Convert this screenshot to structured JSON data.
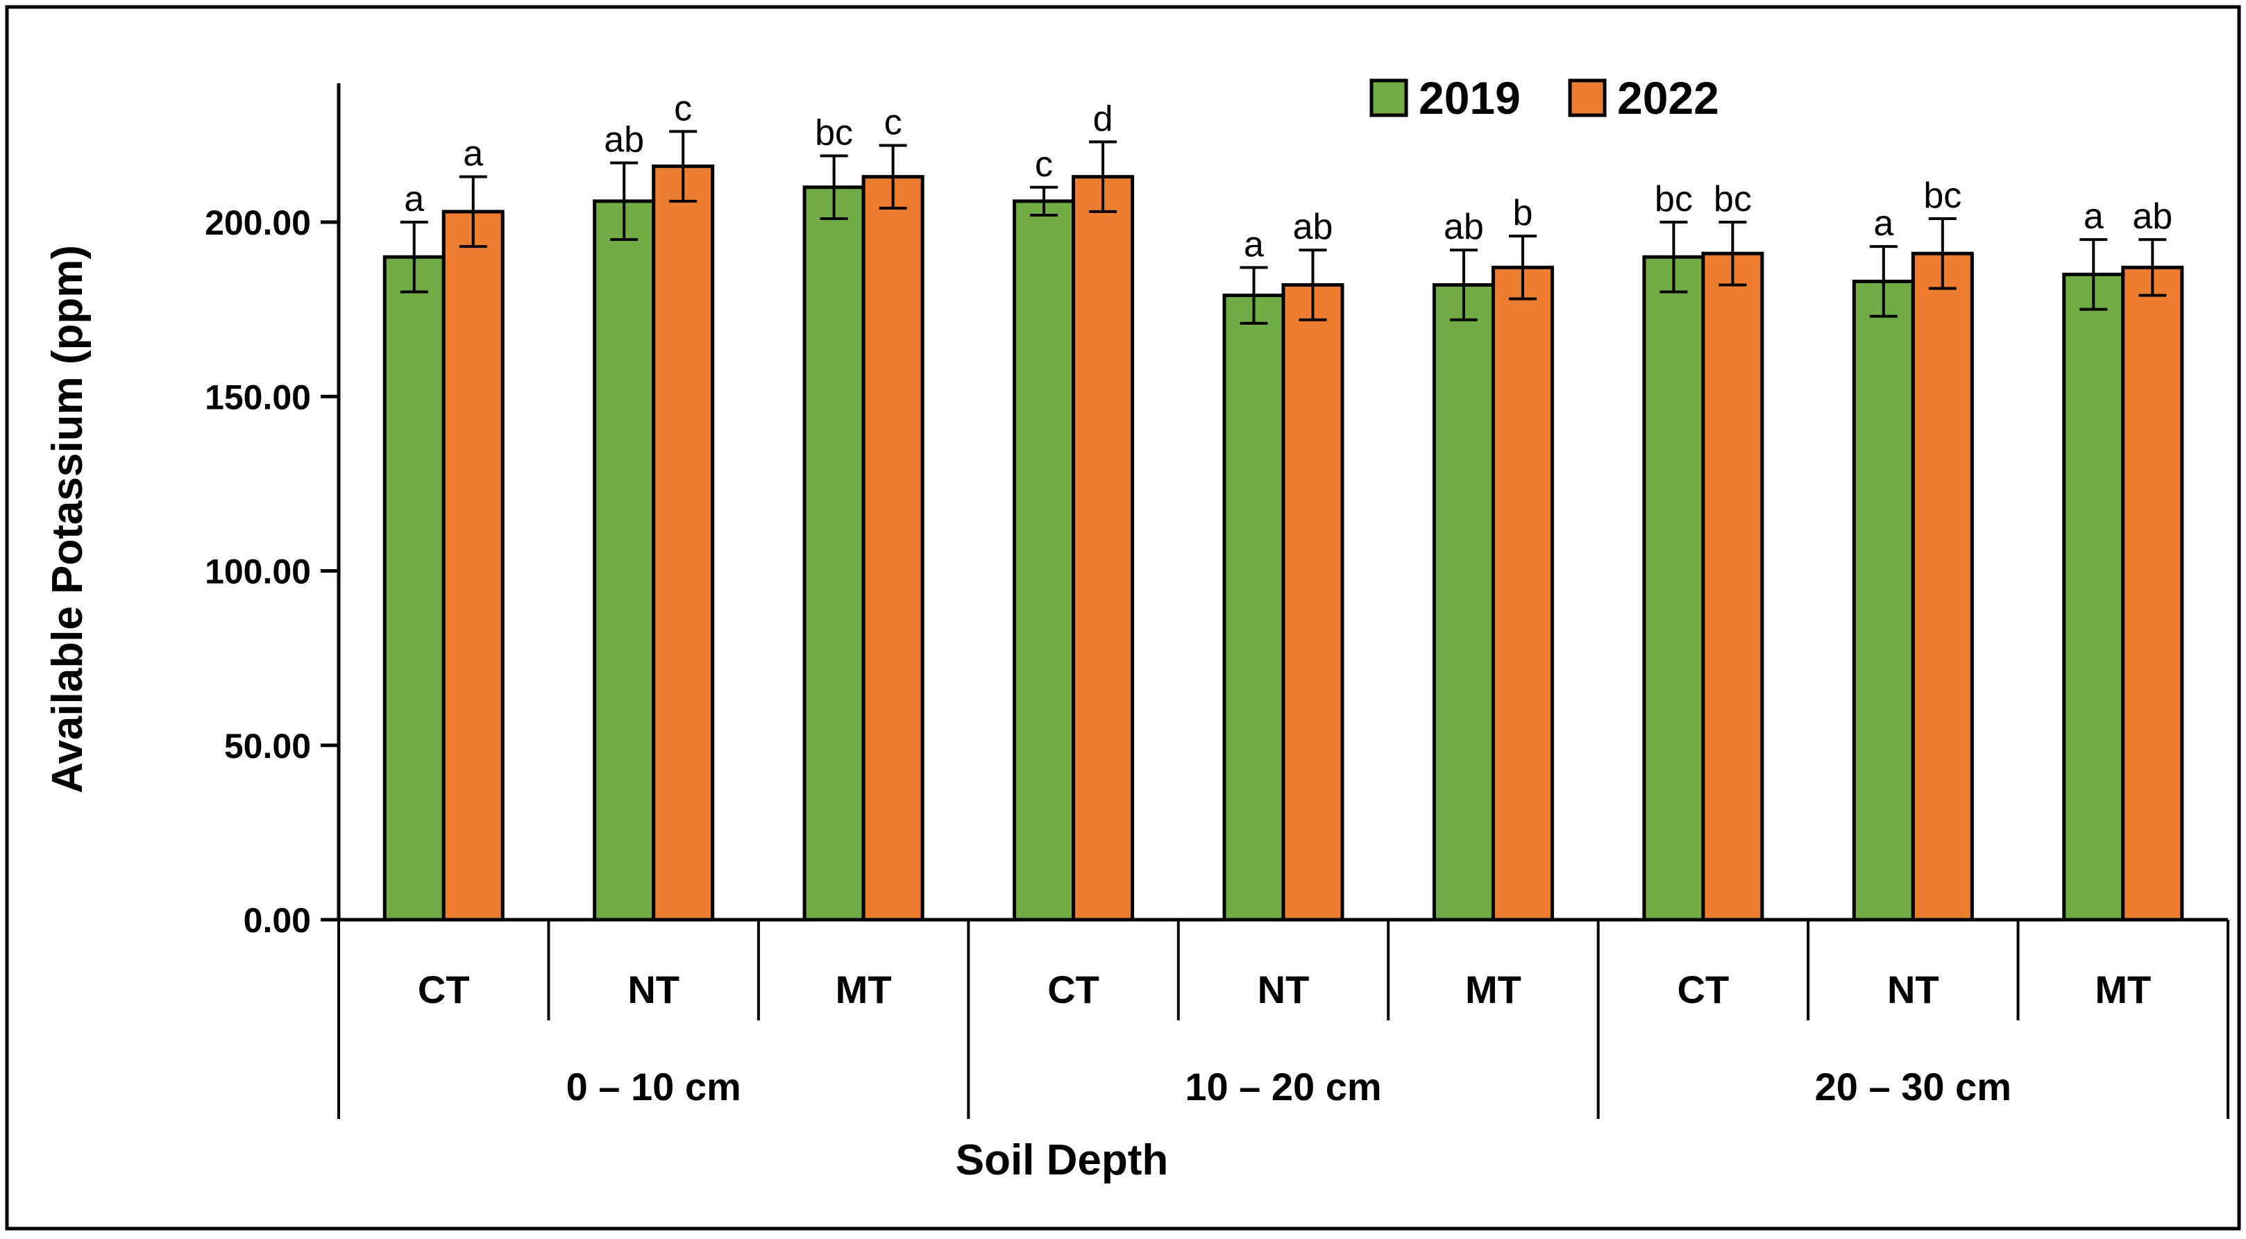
{
  "chart_data": {
    "type": "bar",
    "xlabel": "Soil Depth",
    "ylabel": "Available Potassium (ppm)",
    "ylim": [
      0,
      200
    ],
    "yticks": [
      "0.00",
      "50.00",
      "100.00",
      "150.00",
      "200.00"
    ],
    "groups": [
      "0 – 10 cm",
      "10 – 20 cm",
      "20 – 30 cm"
    ],
    "categories": [
      "CT",
      "NT",
      "MT",
      "CT",
      "NT",
      "MT",
      "CT",
      "NT",
      "MT"
    ],
    "legend_position": "top-right",
    "grid": false,
    "series": [
      {
        "name": "2019",
        "color": "#70ad47",
        "values": [
          190,
          206,
          210,
          206,
          179,
          182,
          190,
          183,
          185
        ],
        "errors": [
          10,
          11,
          9,
          4,
          8,
          10,
          10,
          10,
          10
        ],
        "letters": [
          "a",
          "ab",
          "bc",
          "c",
          "a",
          "ab",
          "bc",
          "a",
          "a"
        ]
      },
      {
        "name": "2022",
        "color": "#ed7d31",
        "values": [
          203,
          216,
          213,
          213,
          182,
          187,
          191,
          191,
          187
        ],
        "errors": [
          10,
          10,
          9,
          10,
          10,
          9,
          9,
          10,
          8
        ],
        "letters": [
          "a",
          "c",
          "c",
          "d",
          "ab",
          "b",
          "bc",
          "bc",
          "ab"
        ]
      }
    ]
  }
}
